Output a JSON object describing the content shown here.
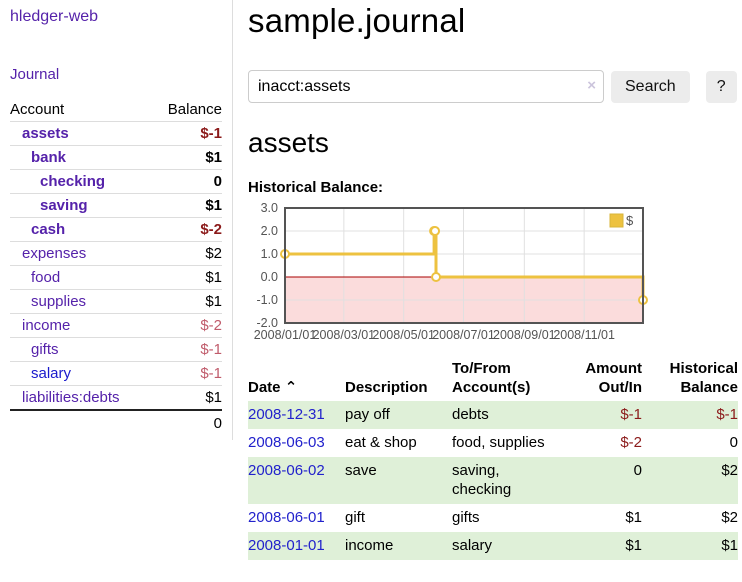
{
  "app": {
    "brand": "hledger-web",
    "nav_journal": "Journal"
  },
  "header": {
    "title": "sample.journal"
  },
  "search": {
    "value": "inacct:assets",
    "clear_icon": "×",
    "button_label": "Search",
    "help_label": "?"
  },
  "account_page": {
    "heading": "assets",
    "chart_label": "Historical Balance:"
  },
  "sidebar_accounts": {
    "headers": {
      "account": "Account",
      "balance": "Balance"
    },
    "rows": [
      {
        "account": "assets",
        "balance": "$-1",
        "level": 1,
        "bold": true,
        "balance_style": "neg-strong"
      },
      {
        "account": "bank",
        "balance": "$1",
        "level": 2,
        "bold": true,
        "balance_style": ""
      },
      {
        "account": "checking",
        "balance": "0",
        "level": 3,
        "bold": true,
        "balance_style": ""
      },
      {
        "account": "saving",
        "balance": "$1",
        "level": 3,
        "bold": true,
        "balance_style": ""
      },
      {
        "account": "cash",
        "balance": "$-2",
        "level": 2,
        "bold": true,
        "balance_style": "neg-strong"
      },
      {
        "account": "expenses",
        "balance": "$2",
        "level": 1,
        "bold": false,
        "balance_style": ""
      },
      {
        "account": "food",
        "balance": "$1",
        "level": 2,
        "bold": false,
        "balance_style": ""
      },
      {
        "account": "supplies",
        "balance": "$1",
        "level": 2,
        "bold": false,
        "balance_style": ""
      },
      {
        "account": "income",
        "balance": "$-2",
        "level": 1,
        "bold": false,
        "balance_style": "neg-soft"
      },
      {
        "account": "gifts",
        "balance": "$-1",
        "level": 2,
        "bold": false,
        "balance_style": "neg-soft"
      },
      {
        "account": "salary",
        "balance": "$-1",
        "level": 2,
        "bold": false,
        "balance_style": "neg-soft",
        "link_style": "unvisited"
      },
      {
        "account": "liabilities:debts",
        "balance": "$1",
        "level": 1,
        "bold": false,
        "balance_style": ""
      }
    ],
    "total": "0"
  },
  "chart_data": {
    "type": "line",
    "steps": true,
    "title": "Historical Balance",
    "series": [
      {
        "name": "$",
        "color": "#edc240",
        "points": [
          [
            "2008-01-01",
            1
          ],
          [
            "2008-06-01",
            2
          ],
          [
            "2008-06-02",
            2
          ],
          [
            "2008-06-03",
            0
          ],
          [
            "2008-12-31",
            -1
          ]
        ]
      }
    ],
    "xrange": [
      "2008-01-01",
      "2008-12-31"
    ],
    "ylim": [
      -2,
      3
    ],
    "yticks": [
      3,
      2,
      1,
      0,
      -1,
      -2
    ],
    "ytick_labels": [
      "3.0",
      "2.0",
      "1.0",
      "0.0",
      "-1.0",
      "-2.0"
    ],
    "xticks": [
      "2008-01-01",
      "2008-03-01",
      "2008-05-01",
      "2008-07-01",
      "2008-09-01",
      "2008-11-01"
    ],
    "xtick_labels": [
      "2008/01/01",
      "2008/03/01",
      "2008/05/01",
      "2008/07/01",
      "2008/09/01",
      "2008/11/01"
    ],
    "legend": {
      "label": "$",
      "position": "top-right"
    },
    "grid": true,
    "colors": {
      "border": "#545454",
      "gridline": "#e0e0e0",
      "tick_text": "#545454",
      "negative_region": "#fbdcdc",
      "zero_line": "#aa0000",
      "marker_fill": "#ffffff",
      "legend_square": "#edc240",
      "legend_square_border": "#d8b53a"
    }
  },
  "register": {
    "headers": [
      {
        "label": "Date",
        "sort_icon": "⌃",
        "align": "left"
      },
      {
        "label": "Description",
        "align": "left"
      },
      {
        "label": "To/From Account(s)",
        "align": "left"
      },
      {
        "label": "Amount Out/In",
        "align": "right"
      },
      {
        "label": "Historical Balance",
        "align": "right"
      }
    ],
    "rows": [
      {
        "date": "2008-12-31",
        "description": "pay off",
        "accounts": "debts",
        "amount": "$-1",
        "amount_neg": true,
        "balance": "$-1",
        "balance_neg": true,
        "green": true
      },
      {
        "date": "2008-06-03",
        "description": "eat & shop",
        "accounts": "food, supplies",
        "amount": "$-2",
        "amount_neg": true,
        "balance": "0",
        "balance_neg": false,
        "green": false
      },
      {
        "date": "2008-06-02",
        "description": "save",
        "accounts": "saving, checking",
        "amount": "0",
        "amount_neg": false,
        "balance": "$2",
        "balance_neg": false,
        "green": true
      },
      {
        "date": "2008-06-01",
        "description": "gift",
        "accounts": "gifts",
        "amount": "$1",
        "amount_neg": false,
        "balance": "$2",
        "balance_neg": false,
        "green": false
      },
      {
        "date": "2008-01-01",
        "description": "income",
        "accounts": "salary",
        "amount": "$1",
        "amount_neg": false,
        "balance": "$1",
        "balance_neg": false,
        "green": true
      }
    ]
  },
  "colors": {
    "link_purple": "#5522aa",
    "link_blue": "#2222cc",
    "negative_strong": "#8b1a1a",
    "negative_soft": "#c05b6b",
    "row_green": "#dff0d8"
  }
}
